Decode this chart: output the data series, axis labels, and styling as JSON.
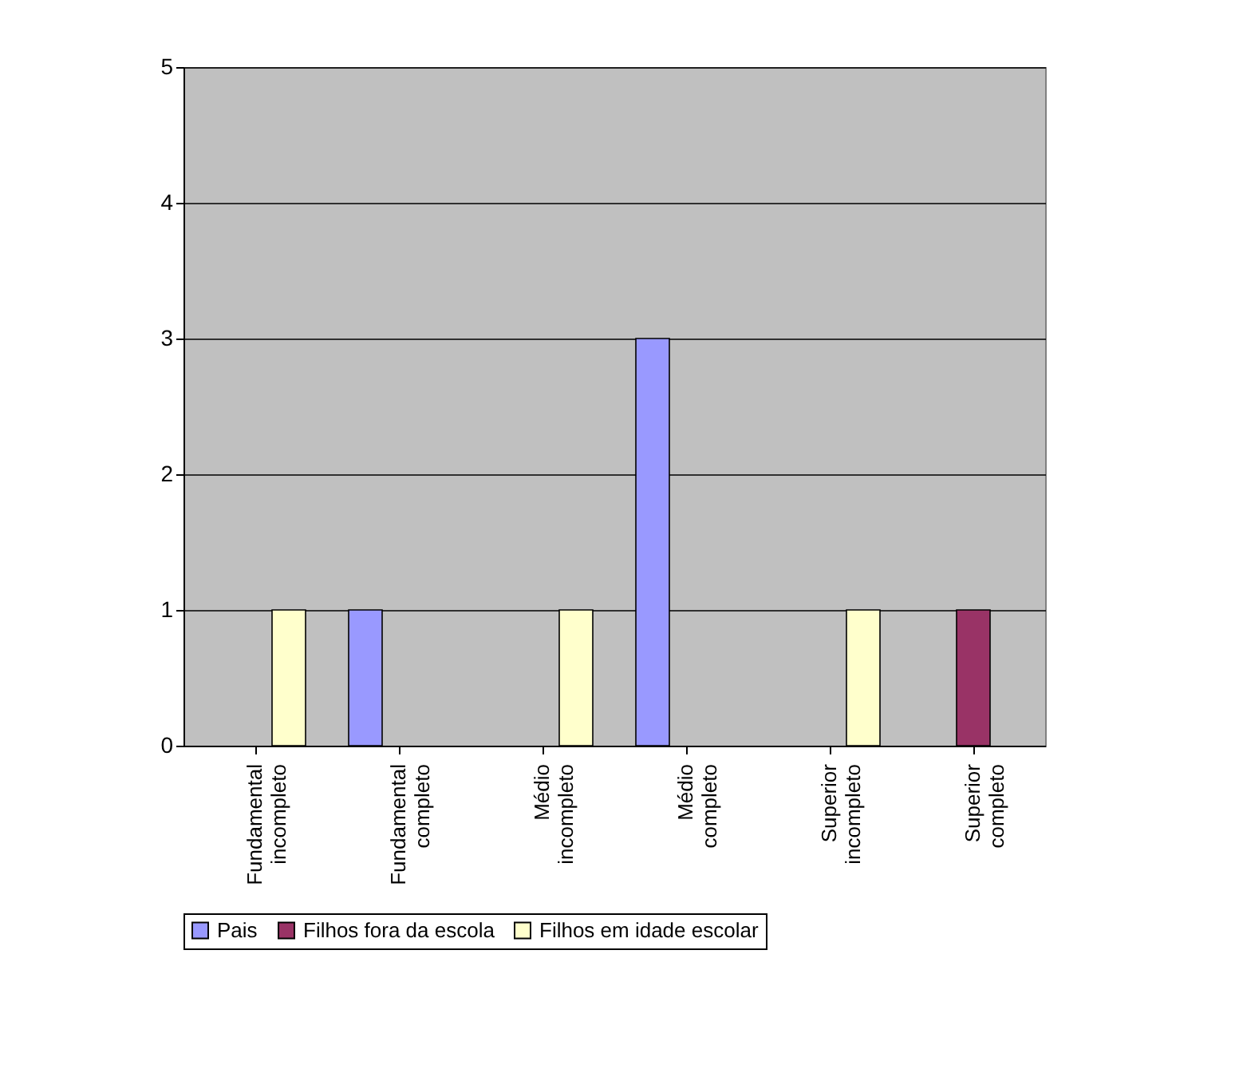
{
  "chart_data": {
    "type": "bar",
    "categories": [
      "Fundamental incompleto",
      "Fundamental completo",
      "Médio incompleto",
      "Médio completo",
      "Superior incompleto",
      "Superior completo"
    ],
    "series": [
      {
        "name": "Pais",
        "color": "#9999ff",
        "values": [
          0,
          1,
          0,
          3,
          0,
          0
        ]
      },
      {
        "name": "Filhos fora da escola",
        "color": "#993366",
        "values": [
          0,
          0,
          0,
          0,
          0,
          1
        ]
      },
      {
        "name": "Filhos em idade escolar",
        "color": "#ffffcc",
        "values": [
          1,
          0,
          1,
          0,
          1,
          0
        ]
      }
    ],
    "ylim": [
      0,
      5
    ],
    "yticks": [
      0,
      1,
      2,
      3,
      4,
      5
    ],
    "grid": "y",
    "legend": "bottom"
  }
}
